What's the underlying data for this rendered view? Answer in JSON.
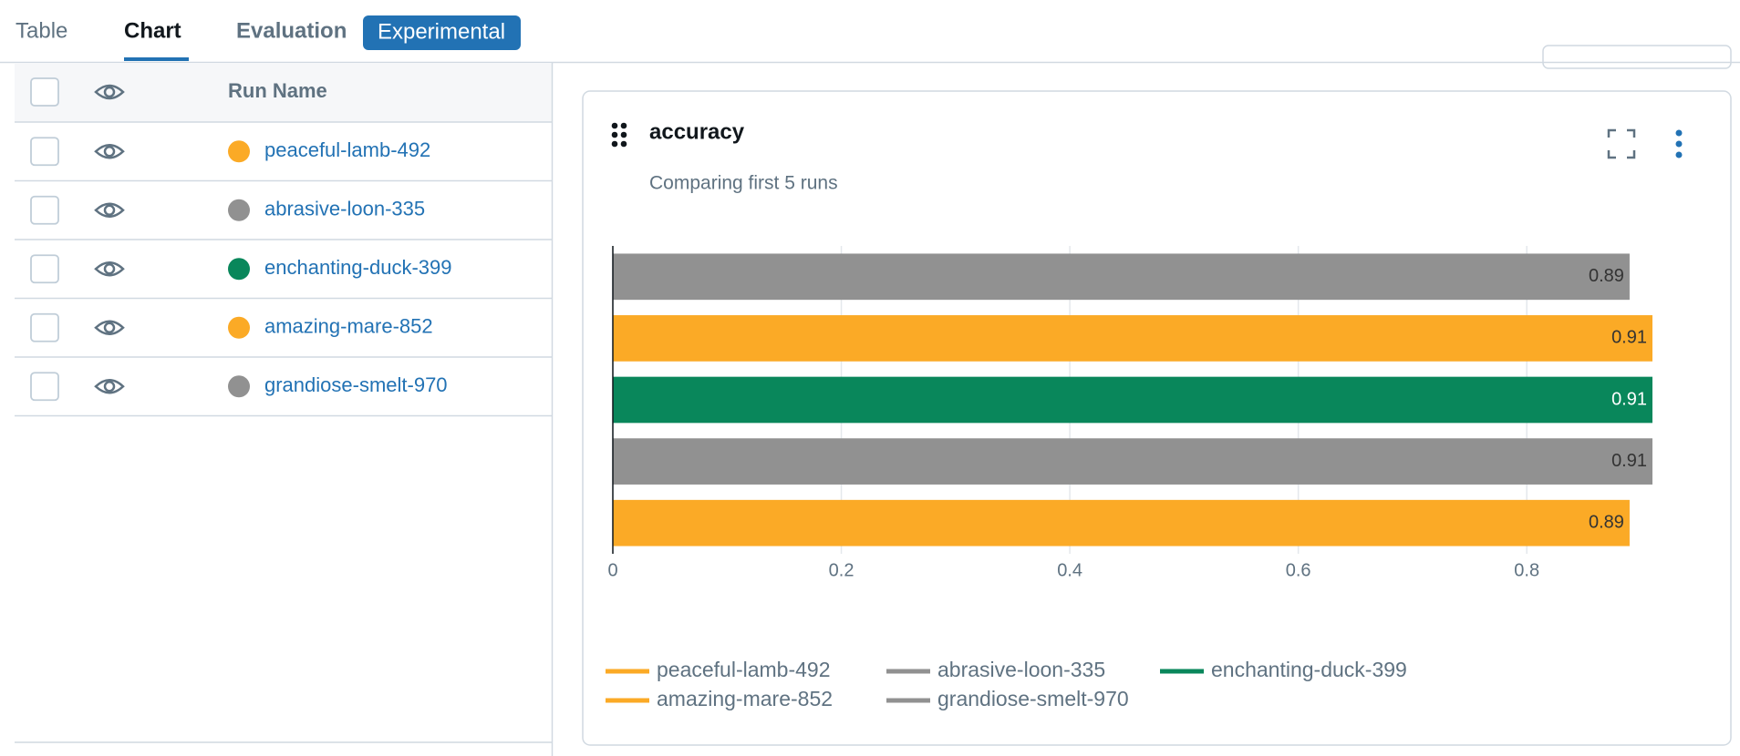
{
  "tabs": [
    "Table",
    "Chart",
    "Evaluation"
  ],
  "badge": "Experimental",
  "table": {
    "header": "Run Name"
  },
  "chart_data": {
    "type": "bar",
    "orientation": "horizontal",
    "title": "accuracy",
    "subtitle": "Comparing first 5 runs",
    "series": [
      {
        "name": "peaceful-lamb-492",
        "color": "#fbaa26",
        "values": [
          0.89
        ]
      },
      {
        "name": "abrasive-loon-335",
        "color": "#919191",
        "values": [
          0.91
        ]
      },
      {
        "name": "enchanting-duck-399",
        "color": "#09875b",
        "values": [
          0.91
        ]
      },
      {
        "name": "amazing-mare-852",
        "color": "#fbaa26",
        "values": [
          0.91
        ]
      },
      {
        "name": "grandiose-smelt-970",
        "color": "#919191",
        "values": [
          0.89
        ]
      }
    ],
    "xlim": [
      0,
      0.91
    ],
    "xticks": [
      0,
      0.2,
      0.4,
      0.6,
      0.8
    ],
    "grid": true
  }
}
